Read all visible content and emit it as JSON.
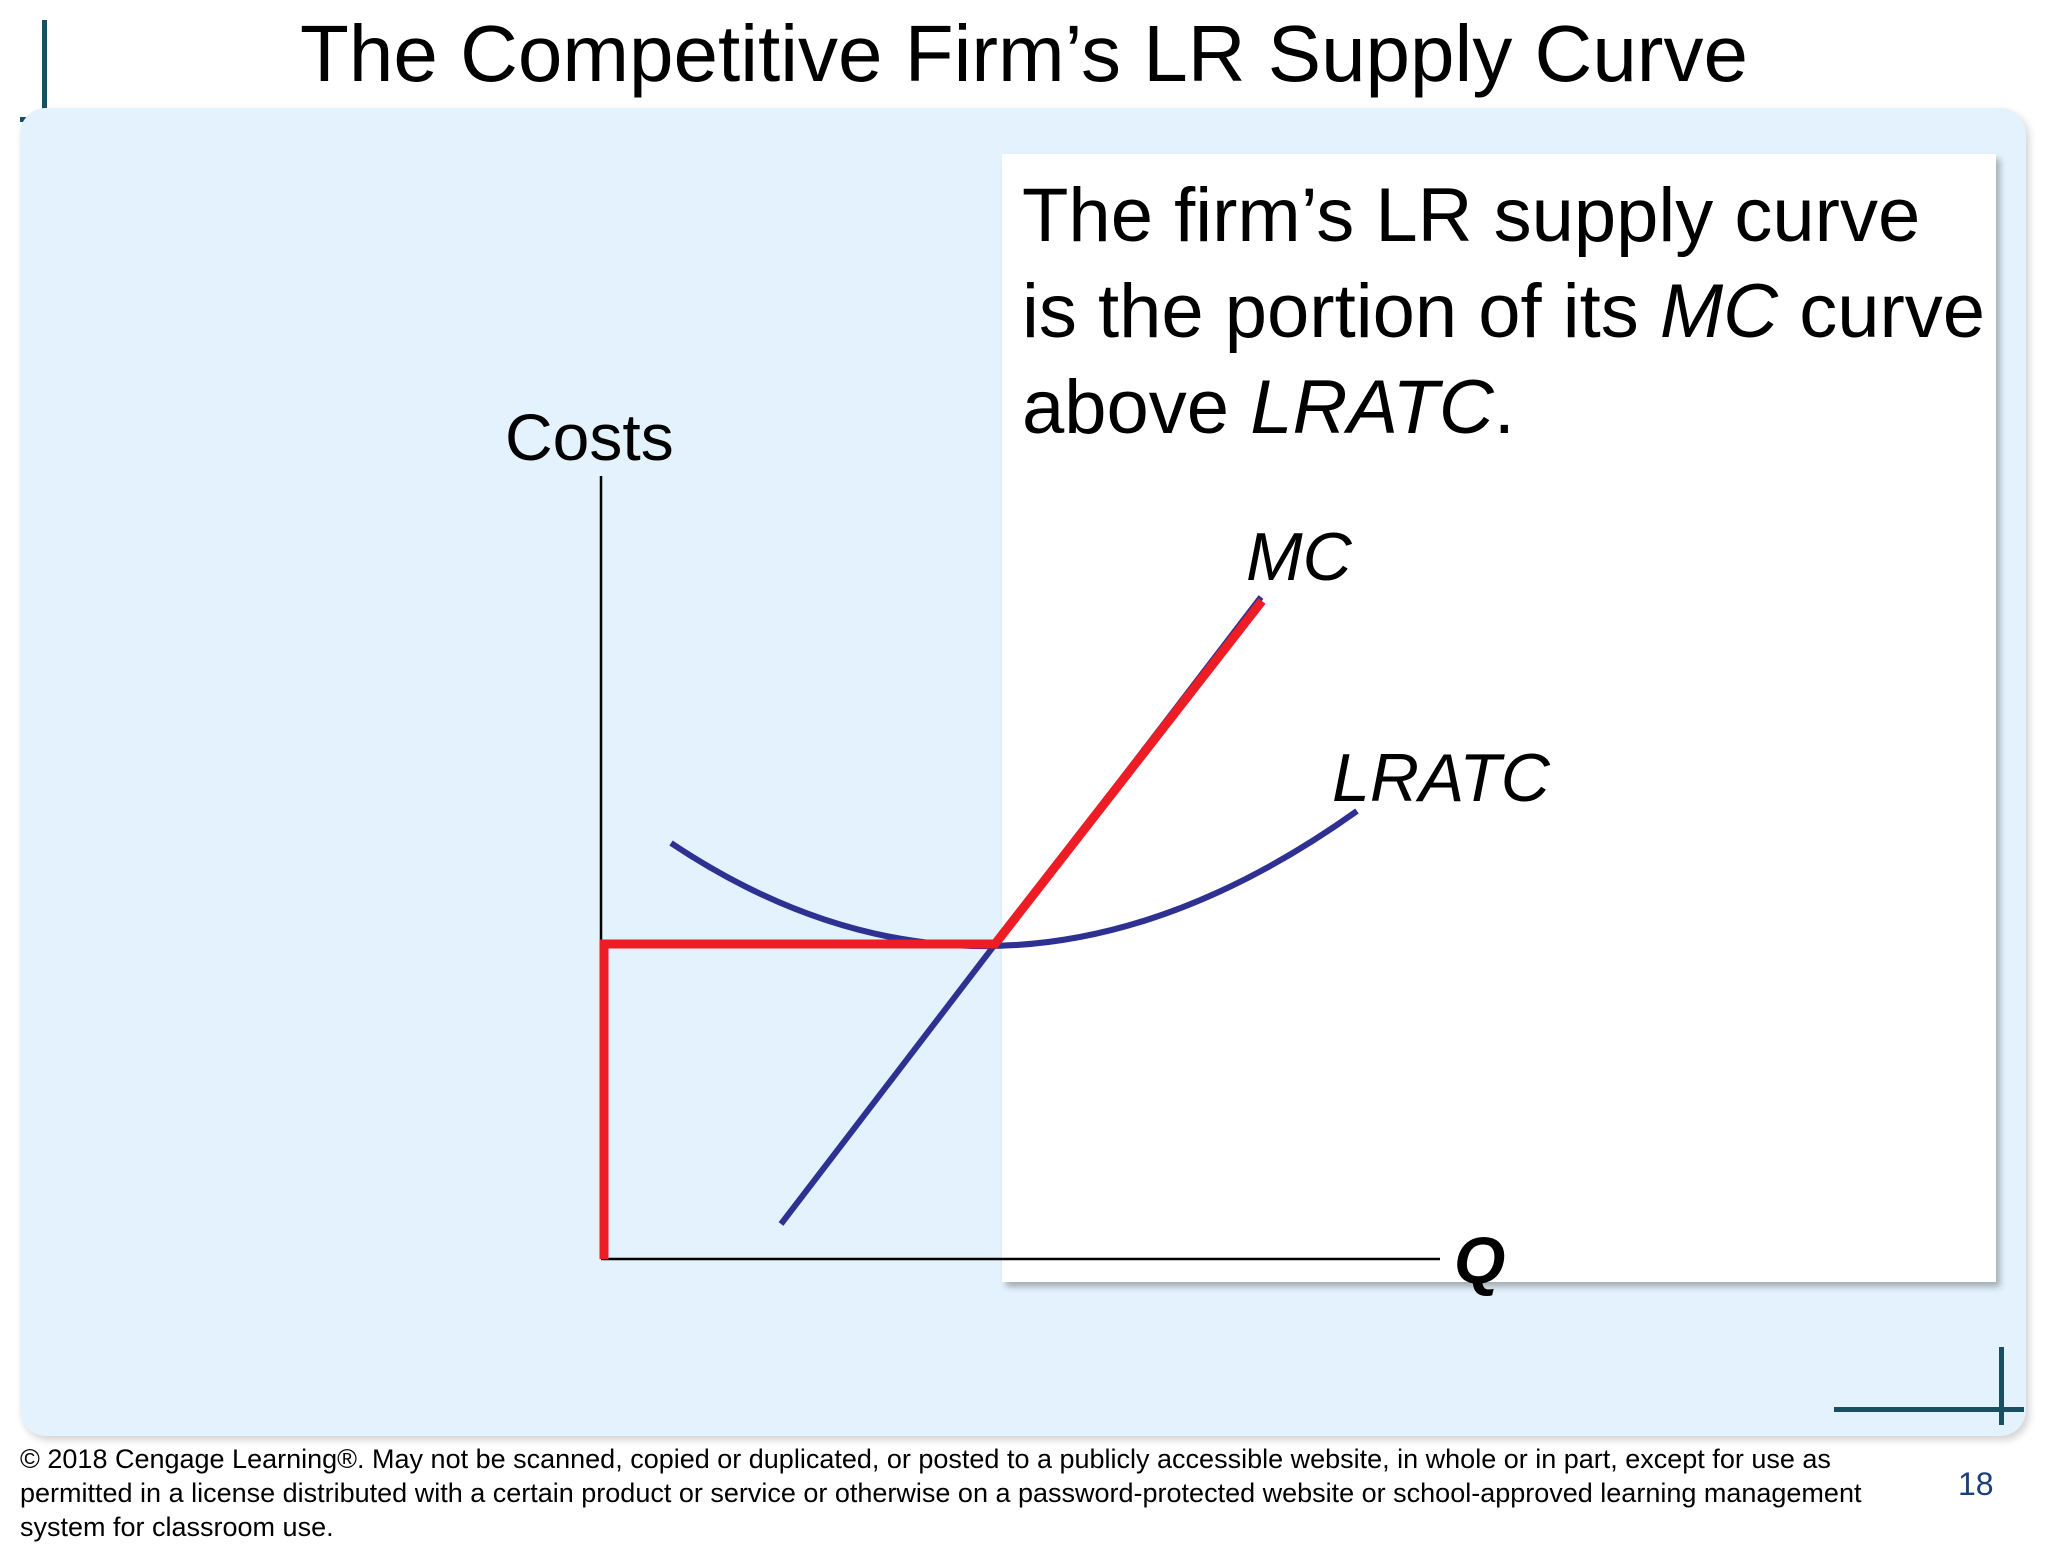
{
  "slide": {
    "title": "The Competitive Firm’s LR Supply Curve",
    "page_number": "18",
    "copyright": "© 2018 Cengage Learning®. May not be scanned, copied or duplicated, or posted to a publicly accessible website, in whole or in part, except for use as permitted in a license distributed with a certain product or service or otherwise on a password-protected website or school-approved learning management system for classroom use."
  },
  "callout": {
    "part1": "The firm’s LR supply curve is the portion of its ",
    "mc": "MC",
    "part2": " curve above ",
    "lratc": "LRATC",
    "part3": "."
  },
  "diagram": {
    "y_axis_label": "Costs",
    "x_axis_label": "Q",
    "curves": {
      "mc_label": "MC",
      "lratc_label": "LRATC"
    },
    "colors": {
      "curve": "#2e3192",
      "supply": "#ee1c25",
      "axis": "#000000",
      "deco": "#1a4f63"
    }
  }
}
